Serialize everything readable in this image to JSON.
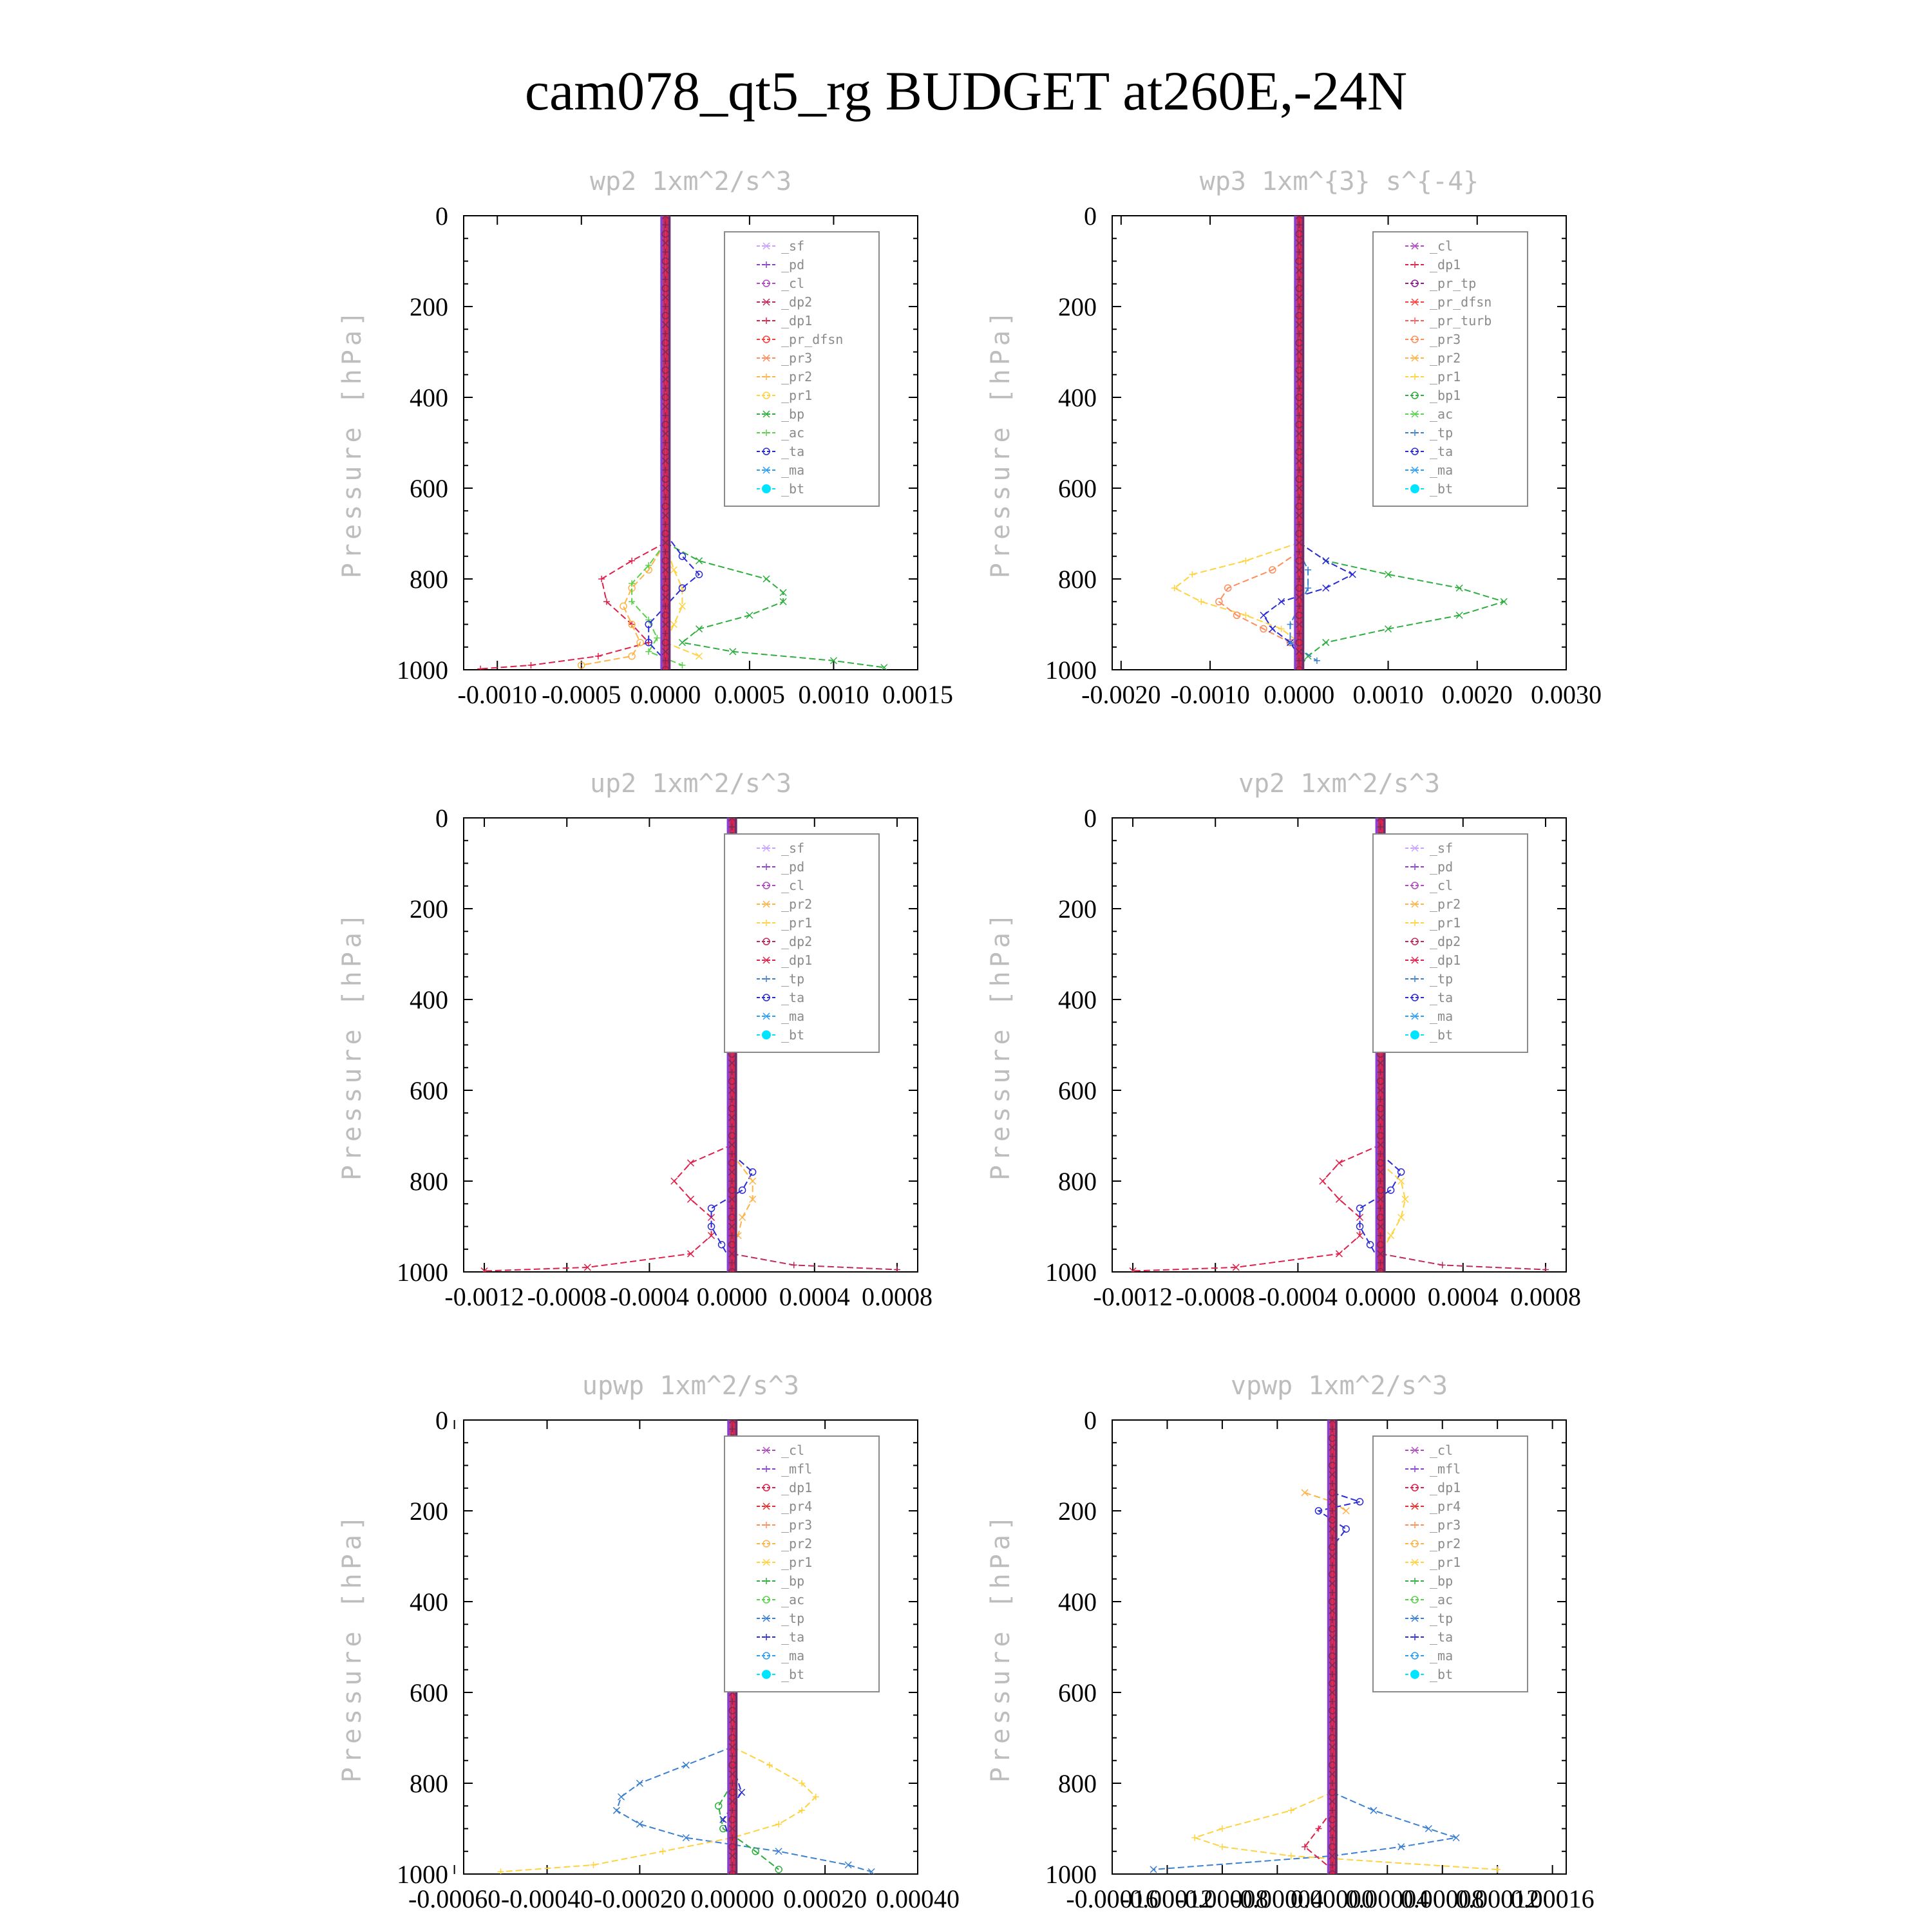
{
  "figure": {
    "title": "cam078_qt5_rg  BUDGET at260E,-24N",
    "background": "#ffffff"
  },
  "colors": {
    "_sf": "#c8a2ff",
    "_pd": "#8a3fd1",
    "_cl": "#b04ac0",
    "_dp2": "#c02a5a",
    "_dp1": "#e0204a",
    "_pr_dfsn": "#ff3b3b",
    "_pr_tp": "#8a1f8a",
    "_pr_turb": "#ff5a5a",
    "_pr4": "#e03030",
    "_pr3": "#ff8c5a",
    "_pr2": "#ffb347",
    "_pr1": "#ffd23f",
    "_bp": "#2eae3e",
    "_bp1": "#2eae3e",
    "_ac": "#59d14a",
    "_tp": "#3a7fd0",
    "_ta": "#2b2bd6",
    "_ma": "#2a9df4",
    "_bt": "#00e5ff",
    "_mfl": "#8a3fd1"
  },
  "chart_data": [
    {
      "id": "wp2",
      "type": "line",
      "title": "wp2   1xm^2/s^3",
      "ylabel": "Pressure [hPa]",
      "xlim": [
        -0.0012,
        0.0015
      ],
      "ylim": [
        1000,
        0
      ],
      "xticks": [
        -0.001,
        -0.0005,
        0.0,
        0.0005,
        0.001,
        0.0015
      ],
      "xtick_labels": [
        "-0.0010",
        "-0.0005",
        "0.0000",
        "0.0005",
        "0.0010",
        "0.0015"
      ],
      "yticks": [
        0,
        200,
        400,
        600,
        800,
        1000
      ],
      "ytick_labels": [
        "0",
        "200",
        "400",
        "600",
        "800",
        "1000"
      ],
      "legend": {
        "position": "top-right",
        "entries": [
          "_sf",
          "_pd",
          "_cl",
          "_dp2",
          "_dp1",
          "_pr_dfsn",
          "_pr3",
          "_pr2",
          "_pr1",
          "_bp",
          "_ac",
          "_ta",
          "_ma",
          "_bt"
        ]
      },
      "series": [
        {
          "name": "_bp",
          "pressure": [
            720,
            760,
            800,
            830,
            850,
            880,
            910,
            940,
            960,
            980,
            995
          ],
          "values": [
            0.0,
            0.0002,
            0.0006,
            0.0007,
            0.0007,
            0.0005,
            0.0002,
            0.0001,
            0.0004,
            0.001,
            0.0013
          ]
        },
        {
          "name": "_dp1",
          "pressure": [
            720,
            760,
            800,
            850,
            900,
            940,
            970,
            990,
            998
          ],
          "values": [
            0.0,
            -0.0002,
            -0.00038,
            -0.00035,
            -0.0002,
            -0.0001,
            -0.0004,
            -0.0008,
            -0.0011
          ]
        },
        {
          "name": "_pr2",
          "pressure": [
            720,
            780,
            820,
            860,
            900,
            940,
            970,
            990
          ],
          "values": [
            0.0,
            -0.0001,
            -0.0002,
            -0.00025,
            -0.0002,
            -0.00015,
            -0.0002,
            -0.0005
          ]
        },
        {
          "name": "_pr1",
          "pressure": [
            720,
            780,
            820,
            860,
            900,
            940,
            970
          ],
          "values": [
            0.0,
            5e-05,
            0.0001,
            0.0001,
            5e-05,
            0.0,
            0.0002
          ]
        },
        {
          "name": "_ac",
          "pressure": [
            720,
            770,
            810,
            850,
            890,
            930,
            960,
            990
          ],
          "values": [
            0.0,
            -0.0001,
            -0.0002,
            -0.0002,
            -0.0001,
            -5e-05,
            -0.0001,
            0.0001
          ]
        },
        {
          "name": "_ta",
          "pressure": [
            700,
            750,
            790,
            820,
            860,
            900,
            940,
            980
          ],
          "values": [
            0.0,
            0.0001,
            0.0002,
            0.0001,
            0.0,
            -0.0001,
            -0.0001,
            0.0
          ]
        }
      ]
    },
    {
      "id": "wp3",
      "type": "line",
      "title": "wp3   1xm^{3} s^{-4}",
      "ylabel": "Pressure [hPa]",
      "xlim": [
        -0.0021,
        0.003
      ],
      "ylim": [
        1000,
        0
      ],
      "xticks": [
        -0.002,
        -0.001,
        0.0,
        0.001,
        0.002,
        0.003
      ],
      "xtick_labels": [
        "-0.0020",
        "-0.0010",
        "0.0000",
        "0.0010",
        "0.0020",
        "0.0030"
      ],
      "yticks": [
        0,
        200,
        400,
        600,
        800,
        1000
      ],
      "ytick_labels": [
        "0",
        "200",
        "400",
        "600",
        "800",
        "1000"
      ],
      "legend": {
        "position": "top-right",
        "entries": [
          "_cl",
          "_dp1",
          "_pr_tp",
          "_pr_dfsn",
          "_pr_turb",
          "_pr3",
          "_pr2",
          "_pr1",
          "_bp1",
          "_ac",
          "_tp",
          "_ta",
          "_ma",
          "_bt"
        ]
      },
      "series": [
        {
          "name": "_bp1",
          "pressure": [
            720,
            760,
            790,
            820,
            850,
            880,
            910,
            940,
            970,
            995
          ],
          "values": [
            0.0,
            0.0003,
            0.001,
            0.0018,
            0.0023,
            0.0018,
            0.001,
            0.0003,
            0.0001,
            0.0
          ]
        },
        {
          "name": "_pr1",
          "pressure": [
            720,
            760,
            790,
            820,
            850,
            880,
            910,
            940,
            970
          ],
          "values": [
            0.0,
            -0.0006,
            -0.0012,
            -0.0014,
            -0.0011,
            -0.0006,
            -0.0002,
            0.0,
            0.0
          ]
        },
        {
          "name": "_pr3",
          "pressure": [
            740,
            780,
            820,
            850,
            880,
            910,
            940,
            970
          ],
          "values": [
            0.0,
            -0.0003,
            -0.0008,
            -0.0009,
            -0.0007,
            -0.0004,
            -0.0001,
            0.0
          ]
        },
        {
          "name": "_ta",
          "pressure": [
            720,
            760,
            790,
            820,
            850,
            880,
            910,
            940,
            970
          ],
          "values": [
            0.0,
            0.0003,
            0.0006,
            0.0003,
            -0.0002,
            -0.0004,
            -0.0003,
            -0.0001,
            0.0
          ]
        },
        {
          "name": "_tp",
          "pressure": [
            740,
            780,
            820,
            860,
            900,
            940,
            980
          ],
          "values": [
            0.0,
            0.0001,
            0.0001,
            0.0,
            -0.0001,
            -0.0001,
            0.0002
          ]
        }
      ]
    },
    {
      "id": "up2",
      "type": "line",
      "title": "up2   1xm^2/s^3",
      "ylabel": "Pressure [hPa]",
      "xlim": [
        -0.0013,
        0.0009
      ],
      "ylim": [
        1000,
        0
      ],
      "xticks": [
        -0.0012,
        -0.0008,
        -0.0004,
        0.0,
        0.0004,
        0.0008
      ],
      "xtick_labels": [
        "-0.0012",
        "-0.0008",
        "-0.0004",
        "0.0000",
        "0.0004",
        "0.0008"
      ],
      "yticks": [
        0,
        200,
        400,
        600,
        800,
        1000
      ],
      "ytick_labels": [
        "0",
        "200",
        "400",
        "600",
        "800",
        "1000"
      ],
      "legend": {
        "position": "top-right",
        "entries": [
          "_sf",
          "_pd",
          "_cl",
          "_pr2",
          "_pr1",
          "_dp2",
          "_dp1",
          "_tp",
          "_ta",
          "_ma",
          "_bt"
        ]
      },
      "series": [
        {
          "name": "_dp1",
          "pressure": [
            720,
            760,
            800,
            840,
            880,
            920,
            960,
            990,
            998
          ],
          "values": [
            0.0,
            -0.0002,
            -0.00028,
            -0.0002,
            -0.0001,
            -0.0001,
            -0.0002,
            -0.0007,
            -0.0012
          ]
        },
        {
          "name": "_dp2",
          "pressure": [
            960,
            985,
            995
          ],
          "values": [
            0.0,
            0.0003,
            0.0008
          ]
        },
        {
          "name": "_ta",
          "pressure": [
            740,
            780,
            820,
            860,
            900,
            940,
            980
          ],
          "values": [
            0.0,
            0.0001,
            5e-05,
            -0.0001,
            -0.0001,
            -5e-05,
            0.0
          ]
        },
        {
          "name": "_pr2",
          "pressure": [
            740,
            800,
            840,
            880,
            920,
            960
          ],
          "values": [
            0.0,
            0.0001,
            0.0001,
            5e-05,
            3e-05,
            0.0
          ]
        }
      ]
    },
    {
      "id": "vp2",
      "type": "line",
      "title": "vp2   1xm^2/s^3",
      "ylabel": "Pressure [hPa]",
      "xlim": [
        -0.0013,
        0.0009
      ],
      "ylim": [
        1000,
        0
      ],
      "xticks": [
        -0.0012,
        -0.0008,
        -0.0004,
        0.0,
        0.0004,
        0.0008
      ],
      "xtick_labels": [
        "-0.0012",
        "-0.0008",
        "-0.0004",
        "0.0000",
        "0.0004",
        "0.0008"
      ],
      "yticks": [
        0,
        200,
        400,
        600,
        800,
        1000
      ],
      "ytick_labels": [
        "0",
        "200",
        "400",
        "600",
        "800",
        "1000"
      ],
      "legend": {
        "position": "top-right",
        "entries": [
          "_sf",
          "_pd",
          "_cl",
          "_pr2",
          "_pr1",
          "_dp2",
          "_dp1",
          "_tp",
          "_ta",
          "_ma",
          "_bt"
        ]
      },
      "series": [
        {
          "name": "_dp1",
          "pressure": [
            720,
            760,
            800,
            840,
            880,
            920,
            960,
            990,
            998
          ],
          "values": [
            0.0,
            -0.0002,
            -0.00028,
            -0.0002,
            -0.0001,
            -0.0001,
            -0.0002,
            -0.0007,
            -0.0012
          ]
        },
        {
          "name": "_dp2",
          "pressure": [
            960,
            985,
            995
          ],
          "values": [
            0.0,
            0.0003,
            0.0008
          ]
        },
        {
          "name": "_ta",
          "pressure": [
            740,
            780,
            820,
            860,
            900,
            940,
            980
          ],
          "values": [
            0.0,
            0.0001,
            5e-05,
            -0.0001,
            -0.0001,
            -5e-05,
            0.0
          ]
        },
        {
          "name": "_pr1",
          "pressure": [
            760,
            800,
            840,
            880,
            920,
            960
          ],
          "values": [
            0.0,
            0.0001,
            0.00012,
            0.0001,
            5e-05,
            0.0
          ]
        }
      ]
    },
    {
      "id": "upwp",
      "type": "line",
      "title": "upwp   1xm^2/s^3",
      "ylabel": "Pressure [hPa]",
      "xlim": [
        -0.00058,
        0.0004
      ],
      "ylim": [
        1000,
        0
      ],
      "xticks": [
        -0.0006,
        -0.0004,
        -0.0002,
        0.0,
        0.0002,
        0.0004
      ],
      "xtick_labels": [
        "-0.00060",
        "-0.00040",
        "-0.00020",
        "0.00000",
        "0.00020",
        "0.00040"
      ],
      "yticks": [
        0,
        200,
        400,
        600,
        800,
        1000
      ],
      "ytick_labels": [
        "0",
        "200",
        "400",
        "600",
        "800",
        "1000"
      ],
      "legend": {
        "position": "top-right",
        "entries": [
          "_cl",
          "_mfl",
          "_dp1",
          "_pr4",
          "_pr3",
          "_pr2",
          "_pr1",
          "_bp",
          "_ac",
          "_tp",
          "_ta",
          "_ma",
          "_bt"
        ]
      },
      "series": [
        {
          "name": "_tp",
          "pressure": [
            720,
            760,
            800,
            830,
            860,
            890,
            920,
            950,
            980,
            995
          ],
          "values": [
            0.0,
            -0.0001,
            -0.0002,
            -0.00024,
            -0.00025,
            -0.0002,
            -0.0001,
            0.0001,
            0.00025,
            0.0003
          ]
        },
        {
          "name": "_pr1",
          "pressure": [
            720,
            760,
            800,
            830,
            860,
            890,
            920,
            950,
            980,
            995
          ],
          "values": [
            0.0,
            8e-05,
            0.00015,
            0.00018,
            0.00015,
            0.0001,
            0.0,
            -0.00015,
            -0.0003,
            -0.0005
          ]
        },
        {
          "name": "_bp",
          "pressure": [
            800,
            850,
            900,
            950,
            990
          ],
          "values": [
            0.0,
            -3e-05,
            -2e-05,
            5e-05,
            0.0001
          ]
        },
        {
          "name": "_ta",
          "pressure": [
            760,
            820,
            880,
            940
          ],
          "values": [
            0.0,
            2e-05,
            -2e-05,
            0.0
          ]
        }
      ]
    },
    {
      "id": "vpwp",
      "type": "line",
      "title": "vpwp   1xm^2/s^3",
      "ylabel": "Pressure [hPa]",
      "xlim": [
        -0.00016,
        0.00017
      ],
      "ylim": [
        1000,
        0
      ],
      "xticks": [
        -0.00016,
        -0.00012,
        -8e-05,
        -4e-05,
        0.0,
        4e-05,
        8e-05,
        0.00012,
        0.00016
      ],
      "xtick_labels": [
        "-0.00016",
        "-0.00012",
        "-0.00008",
        "-0.00004",
        "0.00000",
        "0.00004",
        "0.00008",
        "0.00012",
        "0.00016"
      ],
      "yticks": [
        0,
        200,
        400,
        600,
        800,
        1000
      ],
      "ytick_labels": [
        "0",
        "200",
        "400",
        "600",
        "800",
        "1000"
      ],
      "legend": {
        "position": "top-right",
        "entries": [
          "_cl",
          "_mfl",
          "_dp1",
          "_pr4",
          "_pr3",
          "_pr2",
          "_pr1",
          "_bp",
          "_ac",
          "_tp",
          "_ta",
          "_ma",
          "_bt"
        ]
      },
      "series": [
        {
          "name": "_tp",
          "pressure": [
            820,
            860,
            900,
            920,
            940,
            960,
            990
          ],
          "values": [
            0.0,
            3e-05,
            7e-05,
            9e-05,
            5e-05,
            0.0,
            -0.00013
          ]
        },
        {
          "name": "_pr1",
          "pressure": [
            820,
            860,
            900,
            920,
            940,
            960,
            990
          ],
          "values": [
            0.0,
            -3e-05,
            -8e-05,
            -0.0001,
            -8e-05,
            -3e-05,
            0.00012
          ]
        },
        {
          "name": "_ta",
          "pressure": [
            160,
            180,
            200,
            240,
            280
          ],
          "values": [
            0.0,
            2e-05,
            -1e-05,
            1e-05,
            0.0
          ]
        },
        {
          "name": "_pr2",
          "pressure": [
            160,
            180,
            200
          ],
          "values": [
            -2e-05,
            0.0,
            1e-05
          ]
        },
        {
          "name": "_dp1",
          "pressure": [
            860,
            900,
            940,
            990
          ],
          "values": [
            0.0,
            -1e-05,
            -2e-05,
            0.0
          ]
        }
      ]
    }
  ]
}
